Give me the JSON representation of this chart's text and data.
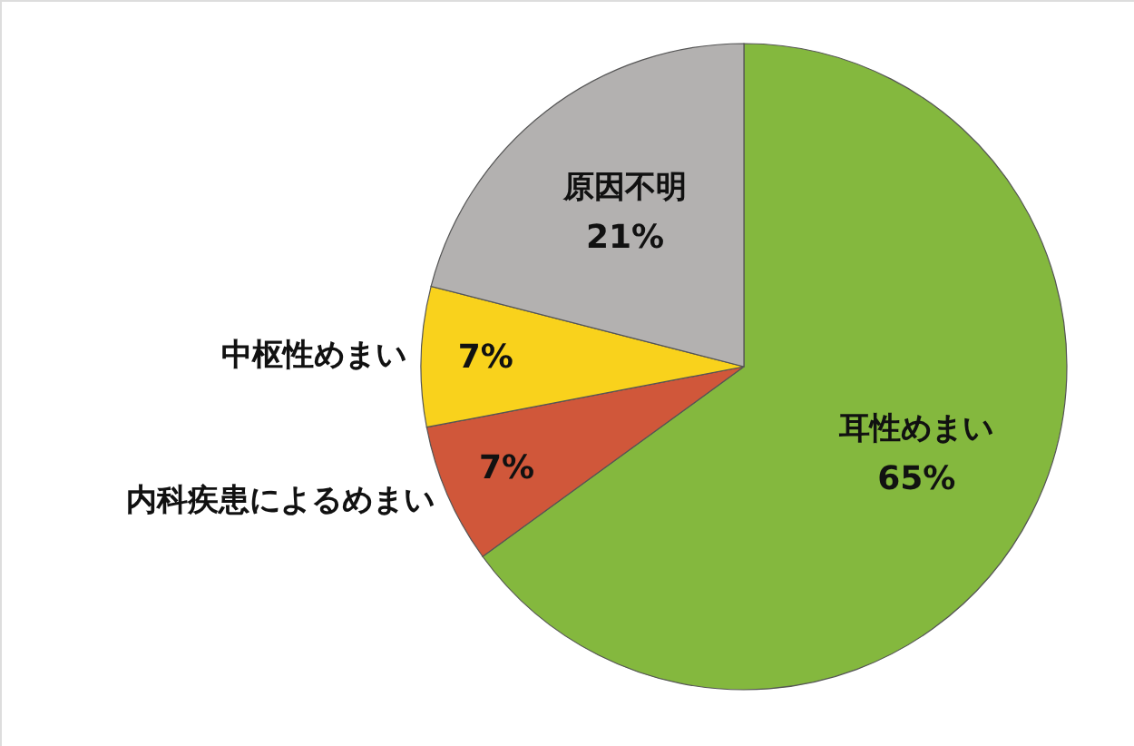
{
  "chart_data": {
    "type": "pie",
    "categories": [
      "耳性めまい",
      "内科疾患によるめまい",
      "中枢性めまい",
      "原因不明"
    ],
    "values": [
      65,
      7,
      7,
      21
    ],
    "colors": [
      "#84b83e",
      "#d0573a",
      "#f9d21c",
      "#b3b1b0"
    ],
    "value_labels": [
      "65%",
      "7%",
      "7%",
      "21%"
    ]
  }
}
